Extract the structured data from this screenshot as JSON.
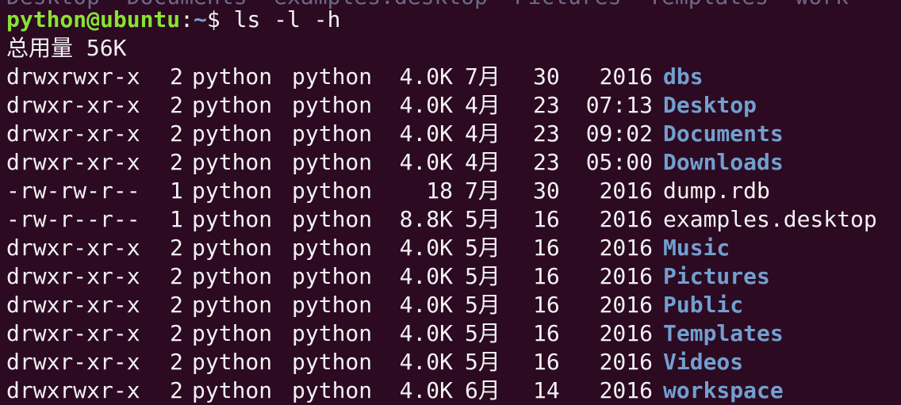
{
  "previous_output_partial": "Desktop  Documents  examples.desktop  Pictures  Templates  work",
  "prompt": {
    "user_host": "python@ubuntu",
    "sep": ":",
    "path": "~",
    "symbol": "$ ",
    "command": "ls -l -h"
  },
  "total": "总用量 56K",
  "colors": {
    "background": "#2c0a22",
    "prompt": "#8ae234",
    "directory": "#729fcf",
    "text": "#f2f2f2"
  },
  "entries": [
    {
      "perm": "drwxrwxr-x",
      "links": "2",
      "owner": "python",
      "group": "python",
      "size": "4.0K",
      "month": "7月",
      "day": "30",
      "time": "2016",
      "name": "dbs",
      "dir": true
    },
    {
      "perm": "drwxr-xr-x",
      "links": "2",
      "owner": "python",
      "group": "python",
      "size": "4.0K",
      "month": "4月",
      "day": "23",
      "time": "07:13",
      "name": "Desktop",
      "dir": true
    },
    {
      "perm": "drwxr-xr-x",
      "links": "2",
      "owner": "python",
      "group": "python",
      "size": "4.0K",
      "month": "4月",
      "day": "23",
      "time": "09:02",
      "name": "Documents",
      "dir": true
    },
    {
      "perm": "drwxr-xr-x",
      "links": "2",
      "owner": "python",
      "group": "python",
      "size": "4.0K",
      "month": "4月",
      "day": "23",
      "time": "05:00",
      "name": "Downloads",
      "dir": true
    },
    {
      "perm": "-rw-rw-r--",
      "links": "1",
      "owner": "python",
      "group": "python",
      "size": "18",
      "month": "7月",
      "day": "30",
      "time": "2016",
      "name": "dump.rdb",
      "dir": false
    },
    {
      "perm": "-rw-r--r--",
      "links": "1",
      "owner": "python",
      "group": "python",
      "size": "8.8K",
      "month": "5月",
      "day": "16",
      "time": "2016",
      "name": "examples.desktop",
      "dir": false
    },
    {
      "perm": "drwxr-xr-x",
      "links": "2",
      "owner": "python",
      "group": "python",
      "size": "4.0K",
      "month": "5月",
      "day": "16",
      "time": "2016",
      "name": "Music",
      "dir": true
    },
    {
      "perm": "drwxr-xr-x",
      "links": "2",
      "owner": "python",
      "group": "python",
      "size": "4.0K",
      "month": "5月",
      "day": "16",
      "time": "2016",
      "name": "Pictures",
      "dir": true
    },
    {
      "perm": "drwxr-xr-x",
      "links": "2",
      "owner": "python",
      "group": "python",
      "size": "4.0K",
      "month": "5月",
      "day": "16",
      "time": "2016",
      "name": "Public",
      "dir": true
    },
    {
      "perm": "drwxr-xr-x",
      "links": "2",
      "owner": "python",
      "group": "python",
      "size": "4.0K",
      "month": "5月",
      "day": "16",
      "time": "2016",
      "name": "Templates",
      "dir": true
    },
    {
      "perm": "drwxr-xr-x",
      "links": "2",
      "owner": "python",
      "group": "python",
      "size": "4.0K",
      "month": "5月",
      "day": "16",
      "time": "2016",
      "name": "Videos",
      "dir": true
    },
    {
      "perm": "drwxrwxr-x",
      "links": "2",
      "owner": "python",
      "group": "python",
      "size": "4.0K",
      "month": "6月",
      "day": "14",
      "time": "2016",
      "name": "workspace",
      "dir": true
    }
  ]
}
